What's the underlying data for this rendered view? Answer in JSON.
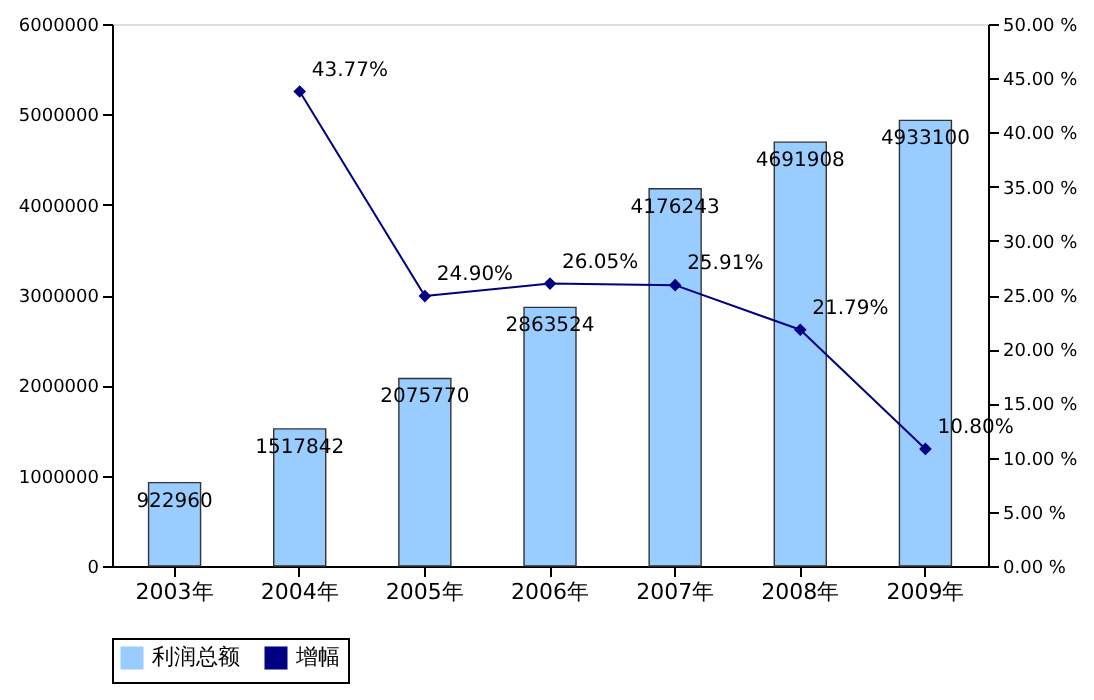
{
  "chart_data": {
    "type": "bar",
    "categories": [
      "2003年",
      "2004年",
      "2005年",
      "2006年",
      "2007年",
      "2008年",
      "2009年"
    ],
    "series": [
      {
        "name": "利润总额",
        "color": "#99ccff",
        "values": [
          922960,
          1517842,
          2075770,
          2863524,
          4176243,
          4691908,
          4933100
        ],
        "value_labels": [
          "922960",
          "1517842",
          "2075770",
          "2863524",
          "4176243",
          "4691908",
          "4933100"
        ]
      },
      {
        "name": "增幅",
        "type": "line",
        "axis": "y2",
        "color": "#000080",
        "values": [
          null,
          43.77,
          24.9,
          26.05,
          25.91,
          21.79,
          10.8
        ],
        "value_labels": [
          null,
          "43.77%",
          "24.90%",
          "26.05%",
          "25.91%",
          "21.79%",
          "10.80%"
        ]
      }
    ],
    "ylim": [
      0,
      6000000
    ],
    "yticks": [
      0,
      1000000,
      2000000,
      3000000,
      4000000,
      5000000,
      6000000
    ],
    "y2lim": [
      0,
      50
    ],
    "y2ticks": [
      {
        "value": 0,
        "label": "0.00 %"
      },
      {
        "value": 5,
        "label": "5.00 %"
      },
      {
        "value": 10,
        "label": "10.00 %"
      },
      {
        "value": 15,
        "label": "15.00 %"
      },
      {
        "value": 20,
        "label": "20.00 %"
      },
      {
        "value": 25,
        "label": "25.00 %"
      },
      {
        "value": 30,
        "label": "30.00 %"
      },
      {
        "value": 35,
        "label": "35.00 %"
      },
      {
        "value": 40,
        "label": "40.00 %"
      },
      {
        "value": 45,
        "label": "45.00 %"
      },
      {
        "value": 50,
        "label": "50.00 %"
      }
    ],
    "legend": "bottom",
    "grid": false,
    "marker": "diamond",
    "line_style": "solid"
  }
}
